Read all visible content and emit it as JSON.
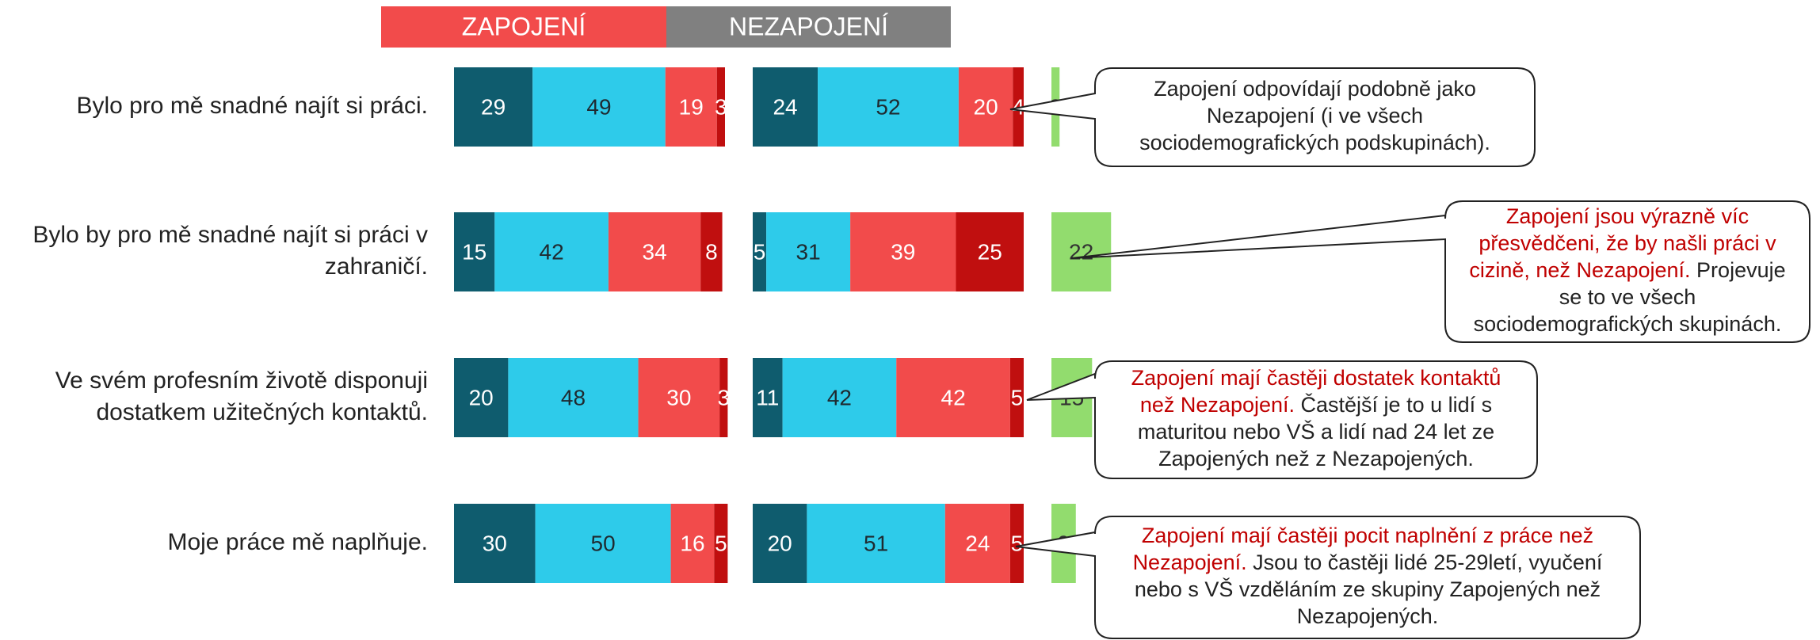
{
  "chart_data": {
    "type": "bar",
    "categories": [
      [
        "Bylo pro mě snadné najít si práci."
      ],
      [
        "Bylo by pro mě snadné najít si práci v",
        "zahraničí."
      ],
      [
        "Ve svém profesním životě disponuji",
        "dostatkem užitečných kontaktů."
      ],
      [
        "Moje práce mě naplňuje."
      ]
    ],
    "groups": [
      {
        "name": "ZAPOJENÍ",
        "color": "#f24b4b",
        "series": [
          {
            "color": "#0f5c6e",
            "label_color": "#ffffff",
            "values": [
              29,
              15,
              20,
              30
            ]
          },
          {
            "color": "#2ecbea",
            "label_color": "#1f2a30",
            "values": [
              49,
              42,
              48,
              50
            ]
          },
          {
            "color": "#f24b4b",
            "label_color": "#ffffff",
            "values": [
              19,
              34,
              30,
              16
            ]
          },
          {
            "color": "#c00f0f",
            "label_color": "#ffffff",
            "values": [
              3,
              8,
              3,
              5
            ]
          }
        ]
      },
      {
        "name": "NEZAPOJENÍ",
        "color": "#808080",
        "series": [
          {
            "color": "#0f5c6e",
            "label_color": "#ffffff",
            "values": [
              24,
              5,
              11,
              20
            ]
          },
          {
            "color": "#2ecbea",
            "label_color": "#1f2a30",
            "values": [
              52,
              31,
              42,
              51
            ]
          },
          {
            "color": "#f24b4b",
            "label_color": "#ffffff",
            "values": [
              20,
              39,
              42,
              24
            ]
          },
          {
            "color": "#c00f0f",
            "label_color": "#ffffff",
            "values": [
              4,
              25,
              5,
              5
            ]
          }
        ]
      }
    ],
    "difference": {
      "color": "#92dc6e",
      "label_color": "#333333",
      "values": [
        3,
        22,
        15,
        9
      ]
    },
    "annotations": [
      {
        "lines": [
          [
            {
              "text": "Zapojení odpovídají podobně jako",
              "color": "#222222"
            }
          ],
          [
            {
              "text": "Nezapojení (i ve všech",
              "color": "#222222"
            }
          ],
          [
            {
              "text": "sociodemografických podskupinách).",
              "color": "#222222"
            }
          ]
        ]
      },
      {
        "lines": [
          [
            {
              "text": "Zapojení jsou výrazně víc",
              "color": "#c00000"
            }
          ],
          [
            {
              "text": "přesvědčeni, že by našli práci v",
              "color": "#c00000"
            }
          ],
          [
            {
              "text": "cizině, než Nezapojení.",
              "color": "#c00000"
            },
            {
              "text": " Projevuje",
              "color": "#222222"
            }
          ],
          [
            {
              "text": "se to ve všech",
              "color": "#222222"
            }
          ],
          [
            {
              "text": "sociodemografických skupinách.",
              "color": "#222222"
            }
          ]
        ]
      },
      {
        "lines": [
          [
            {
              "text": "Zapojení mají častěji dostatek kontaktů",
              "color": "#c00000"
            }
          ],
          [
            {
              "text": "než Nezapojení.",
              "color": "#c00000"
            },
            {
              "text": " Častější je to u lidí s",
              "color": "#222222"
            }
          ],
          [
            {
              "text": "maturitou nebo VŠ a lidí nad 24 let ze",
              "color": "#222222"
            }
          ],
          [
            {
              "text": "Zapojených než z Nezapojených.",
              "color": "#222222"
            }
          ]
        ]
      },
      {
        "lines": [
          [
            {
              "text": "Zapojení mají častěji pocit naplnění z práce než",
              "color": "#c00000"
            }
          ],
          [
            {
              "text": "Nezapojení.",
              "color": "#c00000"
            },
            {
              "text": " Jsou to častěji lidé 25-29letí, vyučení",
              "color": "#222222"
            }
          ],
          [
            {
              "text": "nebo s VŠ vzděláním ze skupiny Zapojených než",
              "color": "#222222"
            }
          ],
          [
            {
              "text": "Nezapojených.",
              "color": "#222222"
            }
          ]
        ]
      }
    ]
  }
}
